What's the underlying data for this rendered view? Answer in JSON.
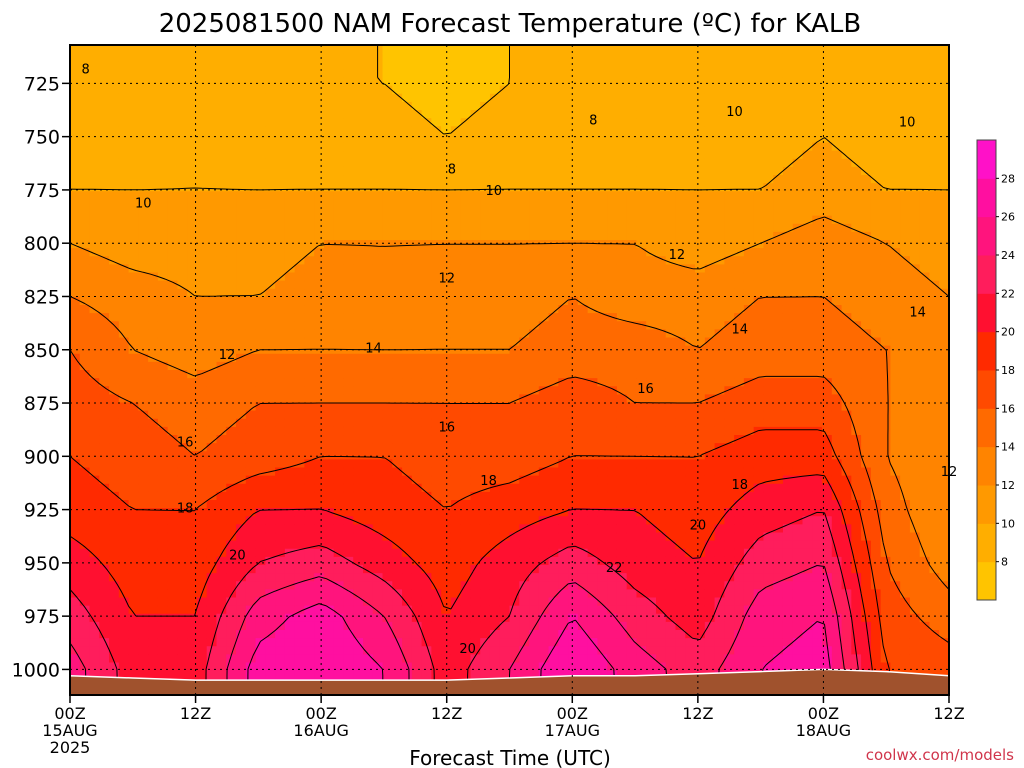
{
  "title": "2025081500 NAM Forecast Temperature (ºC) for KALB",
  "watermark": "coolwx.com/models",
  "chart_data": {
    "type": "heatmap",
    "title": "2025081500 NAM Forecast Temperature (ºC) for KALB",
    "xlabel": "Forecast Time (UTC)",
    "ylabel": "",
    "x_range_hours": [
      0,
      84
    ],
    "y_range_hpa": [
      1012,
      707
    ],
    "y_ticks": [
      {
        "value": 725,
        "label": "725"
      },
      {
        "value": 750,
        "label": "750"
      },
      {
        "value": 775,
        "label": "775"
      },
      {
        "value": 800,
        "label": "800"
      },
      {
        "value": 825,
        "label": "825"
      },
      {
        "value": 850,
        "label": "850"
      },
      {
        "value": 875,
        "label": "875"
      },
      {
        "value": 900,
        "label": "900"
      },
      {
        "value": 925,
        "label": "925"
      },
      {
        "value": 950,
        "label": "950"
      },
      {
        "value": 975,
        "label": "975"
      },
      {
        "value": 1000,
        "label": "1000"
      }
    ],
    "x_ticks": [
      {
        "hour": 0,
        "label": "00Z",
        "date": "15AUG",
        "year": "2025"
      },
      {
        "hour": 12,
        "label": "12Z",
        "date": "",
        "year": ""
      },
      {
        "hour": 24,
        "label": "00Z",
        "date": "16AUG",
        "year": ""
      },
      {
        "hour": 36,
        "label": "12Z",
        "date": "",
        "year": ""
      },
      {
        "hour": 48,
        "label": "00Z",
        "date": "17AUG",
        "year": ""
      },
      {
        "hour": 60,
        "label": "12Z",
        "date": "",
        "year": ""
      },
      {
        "hour": 72,
        "label": "00Z",
        "date": "18AUG",
        "year": ""
      },
      {
        "hour": 84,
        "label": "12Z",
        "date": "",
        "year": ""
      }
    ],
    "grid": true,
    "contour_interval_c": 2,
    "colorbar": {
      "placement": "right",
      "levels": [
        6,
        8,
        10,
        12,
        14,
        16,
        18,
        20,
        22,
        24,
        26,
        28,
        30
      ],
      "tick_labels": [
        "8",
        "10",
        "12",
        "14",
        "16",
        "18",
        "20",
        "22",
        "24",
        "26",
        "28"
      ],
      "colors": [
        "#ffc400",
        "#ffae00",
        "#ff9900",
        "#ff8400",
        "#ff6a00",
        "#ff4a00",
        "#ff2a00",
        "#ff1030",
        "#ff1d5c",
        "#ff147d",
        "#ff0fa0",
        "#ff11c8"
      ]
    },
    "hours": [
      0,
      6,
      12,
      18,
      24,
      30,
      36,
      42,
      48,
      54,
      60,
      66,
      72,
      78,
      84
    ],
    "pressures_hpa": [
      1000,
      975,
      950,
      925,
      900,
      875,
      850,
      825,
      800,
      775,
      750,
      725
    ],
    "temperature_c": [
      [
        25,
        21,
        21,
        27,
        28,
        26,
        21,
        24,
        28,
        25,
        23,
        26,
        27,
        18,
        17
      ],
      [
        23,
        20,
        20,
        25,
        27,
        24,
        20,
        22,
        26,
        23,
        21,
        25,
        26,
        17,
        15
      ],
      [
        21,
        19,
        19,
        22,
        23,
        21,
        19,
        21,
        23,
        21,
        20,
        23,
        24,
        16,
        13
      ],
      [
        19,
        18,
        18,
        20,
        20,
        19,
        18,
        19,
        20,
        20,
        19,
        21,
        22,
        15,
        12
      ],
      [
        18,
        17,
        16,
        17,
        18,
        18,
        17,
        17,
        18,
        18,
        18,
        19,
        19,
        14,
        12
      ],
      [
        17,
        16,
        15,
        16,
        16,
        16,
        16,
        16,
        17,
        16,
        16,
        17,
        17,
        14,
        13
      ],
      [
        16,
        14,
        13,
        14,
        14,
        14,
        14,
        14,
        15,
        15,
        14,
        15,
        15,
        14,
        13
      ],
      [
        14,
        13,
        12,
        12,
        13,
        12,
        13,
        13,
        14,
        13,
        13,
        14,
        14,
        13,
        12
      ],
      [
        12,
        11,
        11,
        11,
        12,
        12,
        12,
        12,
        12,
        12,
        11,
        12,
        13,
        12,
        11
      ],
      [
        10,
        10,
        10,
        10,
        10,
        10,
        10,
        10,
        10,
        10,
        10,
        10,
        11,
        10,
        10
      ],
      [
        9,
        9,
        10,
        9,
        9,
        9,
        8,
        9,
        9,
        9,
        9,
        9,
        10,
        9,
        9
      ],
      [
        8,
        8,
        9,
        8,
        8,
        8,
        7,
        8,
        8,
        8,
        8,
        8,
        9,
        8,
        8
      ]
    ],
    "annotations": [
      {
        "text": "8",
        "hour": 1.5,
        "p": 718
      },
      {
        "text": "8",
        "hour": 50,
        "p": 742
      },
      {
        "text": "8",
        "hour": 36.5,
        "p": 765
      },
      {
        "text": "10",
        "hour": 7,
        "p": 781
      },
      {
        "text": "10",
        "hour": 40.5,
        "p": 775
      },
      {
        "text": "10",
        "hour": 63.5,
        "p": 738
      },
      {
        "text": "10",
        "hour": 80,
        "p": 743
      },
      {
        "text": "12",
        "hour": 36,
        "p": 816
      },
      {
        "text": "12",
        "hour": 58,
        "p": 805
      },
      {
        "text": "12",
        "hour": 15,
        "p": 852
      },
      {
        "text": "12",
        "hour": 84,
        "p": 907
      },
      {
        "text": "14",
        "hour": 29,
        "p": 849
      },
      {
        "text": "14",
        "hour": 64,
        "p": 840
      },
      {
        "text": "14",
        "hour": 81,
        "p": 832
      },
      {
        "text": "16",
        "hour": 11,
        "p": 893
      },
      {
        "text": "16",
        "hour": 36,
        "p": 886
      },
      {
        "text": "16",
        "hour": 55,
        "p": 868
      },
      {
        "text": "18",
        "hour": 11,
        "p": 924
      },
      {
        "text": "18",
        "hour": 40,
        "p": 911
      },
      {
        "text": "18",
        "hour": 64,
        "p": 913
      },
      {
        "text": "20",
        "hour": 16,
        "p": 946
      },
      {
        "text": "20",
        "hour": 38,
        "p": 990
      },
      {
        "text": "20",
        "hour": 60,
        "p": 932
      },
      {
        "text": "22",
        "hour": 52,
        "p": 952
      }
    ],
    "terrain": {
      "hours": [
        0,
        6,
        12,
        18,
        24,
        30,
        36,
        42,
        48,
        54,
        60,
        66,
        72,
        78,
        84
      ],
      "surface_p_hpa": [
        1003,
        1004,
        1005,
        1005,
        1005,
        1005,
        1005,
        1004,
        1003,
        1003,
        1002,
        1001,
        1000,
        1001,
        1003
      ]
    }
  }
}
